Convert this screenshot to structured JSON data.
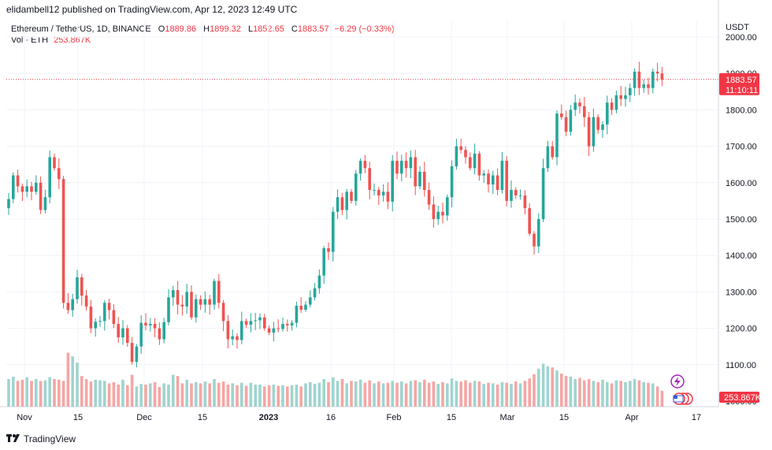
{
  "header": {
    "publish_line": "elidambell12 published on TradingView.com, Apr 12, 2023 12:49 UTC"
  },
  "legend": {
    "symbol": "Ethereum / TetherUS, 1D, BINANCE",
    "open_label": "O",
    "open": "1889.86",
    "high_label": "H",
    "high": "1899.32",
    "low_label": "L",
    "low": "1852.65",
    "close_label": "C",
    "close": "1883.57",
    "change": "−6.29 (−0.33%)",
    "vol_label": "Vol · ETH",
    "vol_value": "253.867K"
  },
  "price_axis": {
    "currency": "USDT",
    "current_price": "1883.57",
    "countdown": "11:10:11",
    "current_volume": "253.867K"
  },
  "footer": {
    "brand": "TradingView",
    "logo": "tradingview-logo"
  },
  "colors": {
    "up": "#26a69a",
    "down": "#ef5350",
    "up_vol": "#9fd4cf",
    "down_vol": "#f5a6a4",
    "tag": "#f23645",
    "grid": "#f0f3fa"
  },
  "chart_data": {
    "type": "candlestick",
    "y_ticks": [
      "2000.00",
      "1900.00",
      "1800.00",
      "1700.00",
      "1600.00",
      "1500.00",
      "1400.00",
      "1300.00",
      "1200.00",
      "1100.00",
      "1000.00"
    ],
    "ylim": [
      1000,
      2000
    ],
    "x_ticks": [
      "Nov",
      "15",
      "Dec",
      "15",
      "2023",
      "16",
      "Feb",
      "15",
      "Mar",
      "15",
      "Apr",
      "17"
    ],
    "start_date": "2022-10-28",
    "closes": [
      1555,
      1620,
      1590,
      1575,
      1590,
      1575,
      1600,
      1525,
      1560,
      1670,
      1640,
      1610,
      1270,
      1250,
      1280,
      1340,
      1290,
      1260,
      1200,
      1218,
      1220,
      1270,
      1250,
      1212,
      1175,
      1200,
      1160,
      1108,
      1150,
      1215,
      1208,
      1212,
      1200,
      1170,
      1217,
      1285,
      1305,
      1265,
      1260,
      1300,
      1230,
      1280,
      1265,
      1280,
      1265,
      1330,
      1270,
      1220,
      1170,
      1178,
      1168,
      1220,
      1210,
      1220,
      1222,
      1230,
      1200,
      1188,
      1200,
      1198,
      1212,
      1208,
      1215,
      1262,
      1251,
      1265,
      1285,
      1310,
      1345,
      1420,
      1410,
      1520,
      1560,
      1525,
      1575,
      1550,
      1625,
      1660,
      1640,
      1580,
      1580,
      1565,
      1575,
      1548,
      1660,
      1625,
      1660,
      1640,
      1670,
      1590,
      1630,
      1580,
      1540,
      1500,
      1520,
      1510,
      1560,
      1645,
      1700,
      1690,
      1670,
      1640,
      1680,
      1620,
      1625,
      1595,
      1620,
      1580,
      1660,
      1550,
      1580,
      1565,
      1565,
      1530,
      1460,
      1425,
      1500,
      1640,
      1700,
      1670,
      1790,
      1780,
      1740,
      1800,
      1820,
      1810,
      1780,
      1700,
      1780,
      1745,
      1760,
      1820,
      1800,
      1840,
      1830,
      1840,
      1860,
      1905,
      1860,
      1870,
      1860,
      1905,
      1900,
      1883
    ],
    "volumes": [
      450,
      490,
      420,
      440,
      480,
      420,
      450,
      420,
      430,
      480,
      450,
      440,
      420,
      880,
      820,
      720,
      500,
      450,
      410,
      440,
      430,
      420,
      380,
      400,
      360,
      440,
      350,
      520,
      330,
      370,
      360,
      380,
      400,
      320,
      380,
      360,
      520,
      500,
      380,
      440,
      380,
      400,
      380,
      410,
      380,
      450,
      390,
      410,
      360,
      380,
      350,
      390,
      340,
      390,
      360,
      360,
      330,
      350,
      360,
      340,
      350,
      330,
      350,
      360,
      330,
      380,
      400,
      370,
      390,
      450,
      400,
      480,
      420,
      450,
      380,
      420,
      410,
      440,
      390,
      430,
      380,
      410,
      380,
      390,
      420,
      390,
      410,
      380,
      420,
      430,
      400,
      440,
      390,
      410,
      370,
      400,
      380,
      460,
      420,
      410,
      430,
      390,
      420,
      410,
      370,
      390,
      380,
      360,
      400,
      390,
      370,
      410,
      380,
      420,
      460,
      530,
      620,
      700,
      660,
      640,
      590,
      540,
      500,
      490,
      450,
      470,
      430,
      450,
      420,
      400,
      440,
      400,
      380,
      430,
      420,
      400,
      420,
      450,
      430,
      400,
      390,
      380,
      330,
      260
    ]
  }
}
